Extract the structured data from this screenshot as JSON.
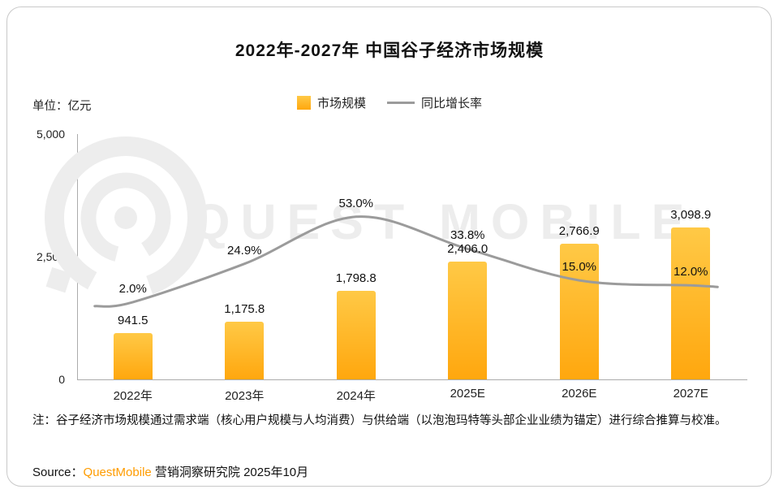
{
  "colors": {
    "bar_top": "#ffc946",
    "bar_bottom": "#ffa70e",
    "line": "#9b9b9b",
    "brand": "#ff9c00",
    "watermark": "#ededed"
  },
  "chart_data": {
    "type": "bar+line",
    "title": "2022年-2027年 中国谷子经济市场规模",
    "unit_label": "单位：亿元",
    "categories": [
      "2022年",
      "2023年",
      "2024年",
      "2025E",
      "2026E",
      "2027E"
    ],
    "series": [
      {
        "name": "市场规模",
        "type": "bar",
        "unit": "亿元",
        "values": [
          941.5,
          1175.8,
          1798.8,
          2406.0,
          2766.9,
          3098.9
        ],
        "labels": [
          "941.5",
          "1,175.8",
          "1,798.8",
          "2,406.0",
          "2,766.9",
          "3,098.9"
        ]
      },
      {
        "name": "同比增长率",
        "type": "line",
        "unit": "%",
        "values": [
          2.0,
          24.9,
          53.0,
          33.8,
          15.0,
          12.0
        ],
        "labels": [
          "2.0%",
          "24.9%",
          "53.0%",
          "33.8%",
          "15.0%",
          "12.0%"
        ]
      }
    ],
    "ylim": [
      0,
      5000
    ],
    "yticks": [
      "5,000",
      "2,500",
      "0"
    ],
    "legend_position": "top-center",
    "grid": false
  },
  "watermark_text": "QUEST MOBILE",
  "note": "注：谷子经济市场规模通过需求端（核心用户规模与人均消费）与供给端（以泡泡玛特等头部企业业绩为锚定）进行综合推算与校准。",
  "source": {
    "prefix": "Source：",
    "brand": "QuestMobile",
    "suffix": " 营销洞察研究院 2025年10月"
  }
}
